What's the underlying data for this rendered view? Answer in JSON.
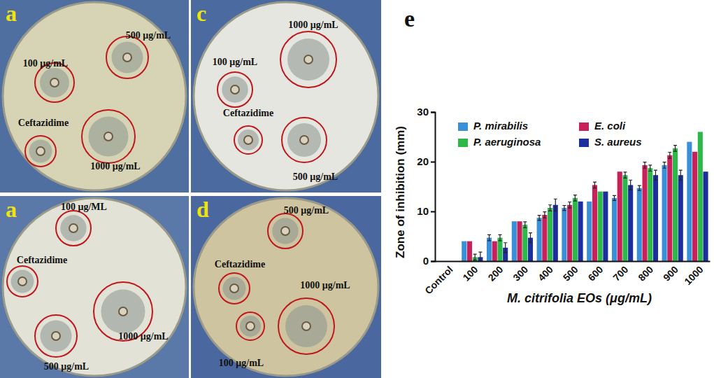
{
  "chart_data": {
    "type": "bar",
    "title": "e",
    "x_label": "M. citrifolia EOs (μg/mL)",
    "y_label": "Zone of inhibition (mm)",
    "categories": [
      "Control",
      "100",
      "200",
      "300",
      "400",
      "500",
      "600",
      "700",
      "800",
      "900",
      "1000"
    ],
    "series": [
      {
        "name": "P. mirabilis",
        "color": "#3a8fd9",
        "values": [
          0,
          4,
          4.7,
          8,
          8.7,
          10.7,
          12,
          12.7,
          14.7,
          19.3,
          24
        ],
        "errors": [
          0,
          0,
          0.6,
          0,
          0.5,
          0.5,
          0,
          0.5,
          0.5,
          0.6,
          0
        ]
      },
      {
        "name": "E. coli",
        "color": "#c8205a",
        "values": [
          0,
          4,
          4,
          8,
          9.3,
          11.3,
          15.3,
          18,
          19.3,
          21.3,
          22
        ],
        "errors": [
          0,
          0,
          0,
          0,
          0.6,
          0.6,
          0.6,
          0,
          0.6,
          0.6,
          0
        ]
      },
      {
        "name": "P. aeruginosa",
        "color": "#2db84a",
        "values": [
          0,
          0.8,
          4.7,
          7.3,
          10.7,
          12.7,
          14,
          17.3,
          18.7,
          22.7,
          26
        ],
        "errors": [
          0,
          0.6,
          0.6,
          0.6,
          0.6,
          0.6,
          0,
          0.6,
          0.6,
          0.6,
          0
        ]
      },
      {
        "name": "S. aureus",
        "color": "#1c2f9c",
        "values": [
          0,
          0.8,
          2.7,
          4.7,
          11.3,
          12,
          14,
          15.3,
          17.3,
          17.3,
          18
        ],
        "errors": [
          0,
          1,
          1,
          1,
          1.2,
          0,
          0,
          1,
          1,
          1,
          0
        ]
      }
    ],
    "ylim": [
      0,
      30
    ],
    "yticks": [
      0,
      10,
      20,
      30
    ],
    "legend": "top"
  },
  "photo_panels": [
    {
      "label": "a",
      "annotations": [
        "100 μg/mL",
        "500 μg/mL",
        "Ceftazidime",
        "1000 μg/mL"
      ]
    },
    {
      "label": "c",
      "annotations": [
        "1000 μg/mL",
        "100 μg/mL",
        "Ceftazidime",
        "500 μg/mL"
      ]
    },
    {
      "label": "a",
      "annotations": [
        "100 μg/ML",
        "Ceftazidime",
        "1000 μg/mL",
        "500 μg/mL"
      ]
    },
    {
      "label": "d",
      "annotations": [
        "500 μg/mL",
        "Ceftazidime",
        "100 μg/mL",
        "1000 μg/mL"
      ]
    }
  ]
}
